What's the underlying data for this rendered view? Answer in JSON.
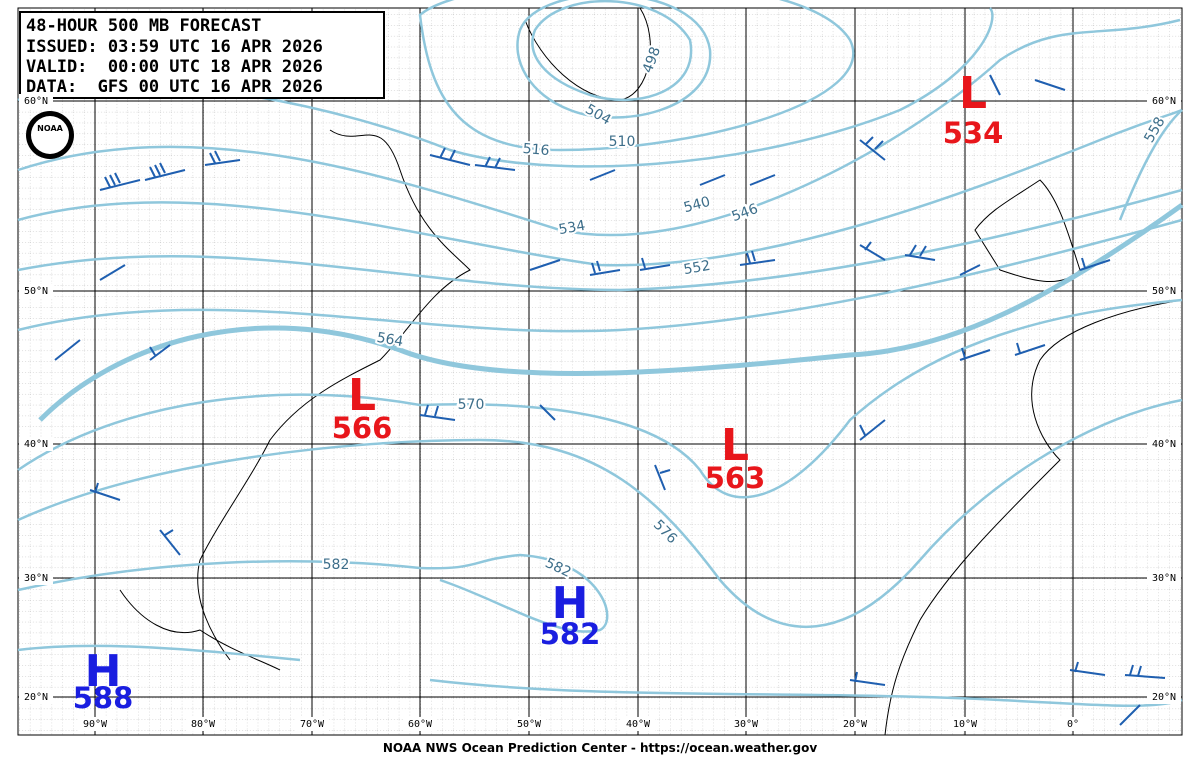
{
  "header": {
    "lines": [
      "48-HOUR 500 MB FORECAST",
      "ISSUED: 03:59 UTC 16 APR 2026",
      "VALID:  00:00 UTC 18 APR 2026",
      "DATA:  GFS 00 UTC 16 APR 2026"
    ]
  },
  "logo": "NOAA",
  "systems": [
    {
      "letter": "L",
      "value": "534"
    },
    {
      "letter": "L",
      "value": "566"
    },
    {
      "letter": "L",
      "value": "563"
    },
    {
      "letter": "H",
      "value": "582"
    },
    {
      "letter": "H",
      "value": "588"
    }
  ],
  "contour_labels": [
    "498",
    "504",
    "510",
    "516",
    "534",
    "540",
    "546",
    "552",
    "558",
    "564",
    "570",
    "576",
    "582",
    "582"
  ],
  "lat_labels": [
    "60°N",
    "50°N",
    "40°N",
    "30°N",
    "20°N"
  ],
  "lon_labels": [
    "90°W",
    "80°W",
    "70°W",
    "60°W",
    "50°W",
    "40°W",
    "30°W",
    "20°W",
    "10°W",
    "0°"
  ],
  "footer": "NOAA NWS Ocean Prediction Center - https://ocean.weather.gov"
}
